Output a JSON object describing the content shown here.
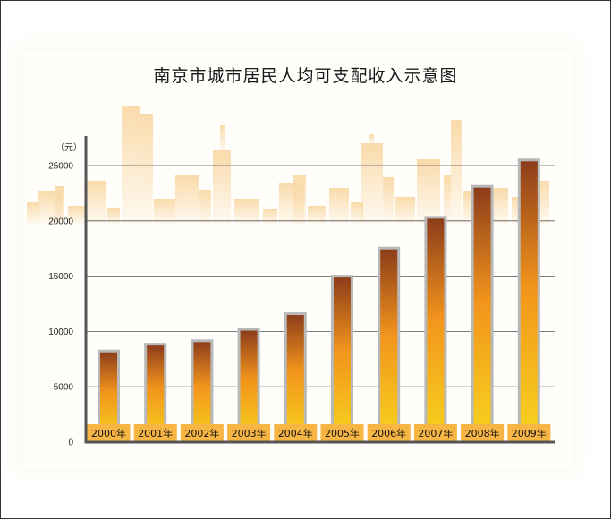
{
  "chart_data": {
    "type": "bar",
    "title": "南京市城市居民人均可支配收入示意图",
    "ylabel": "（元）",
    "xlabel": "",
    "categories": [
      "2000年",
      "2001年",
      "2002年",
      "2003年",
      "2004年",
      "2005年",
      "2006年",
      "2007年",
      "2008年",
      "2009年"
    ],
    "values": [
      8233,
      8848,
      9157,
      10196,
      11602,
      14997,
      17538,
      20317,
      23123,
      25504
    ],
    "ylim": [
      0,
      25000
    ],
    "yticks": [
      0,
      5000,
      10000,
      15000,
      20000,
      25000
    ],
    "grid": true,
    "legend": "none",
    "colors": {
      "bar_top": "#8b3c1b",
      "bar_mid": "#f2941c",
      "bar_bottom": "#f7d51e",
      "bar_border": "#b8b8b8",
      "label_bg": "#f7b544",
      "gridline": "#555555",
      "axis": "#555555",
      "skyline": "#f9d9a6"
    }
  }
}
